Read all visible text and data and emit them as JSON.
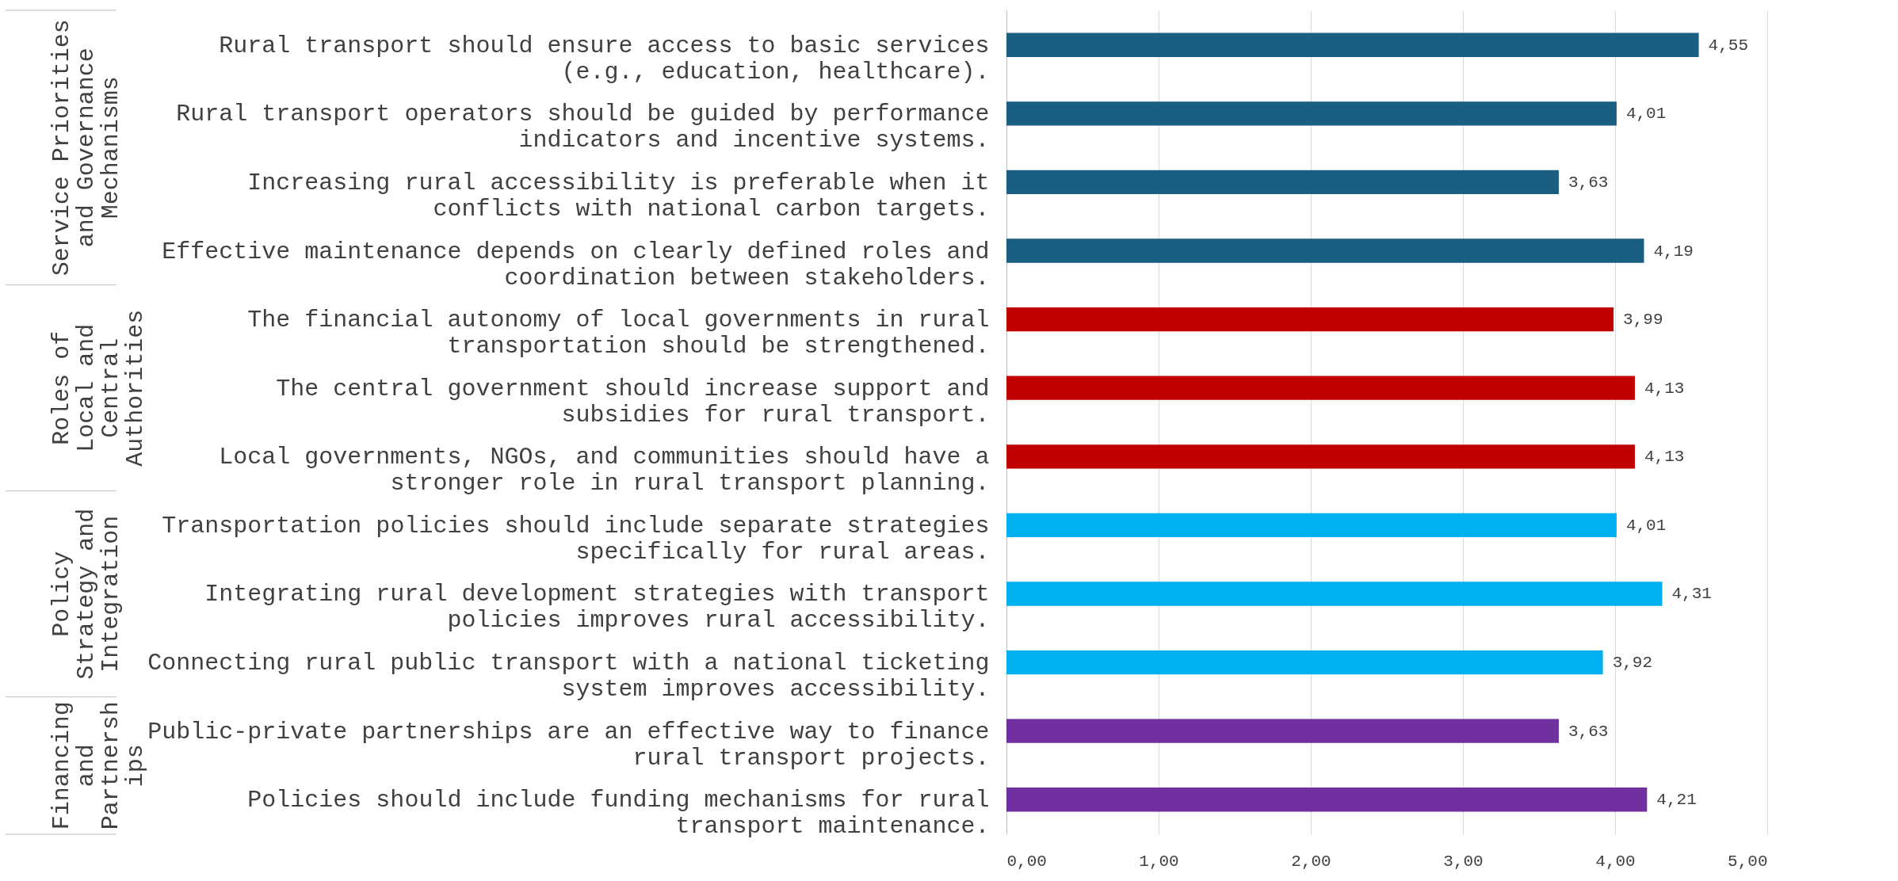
{
  "chart_data": {
    "type": "bar",
    "orientation": "horizontal",
    "categories": [
      "Rural transport should ensure access to basic services (e.g., education, healthcare).",
      "Rural transport operators should be guided by performance indicators and incentive systems.",
      "Increasing rural accessibility is preferable when it conflicts with national carbon targets.",
      "Effective maintenance depends on clearly defined roles and coordination between stakeholders.",
      "The financial autonomy of local governments in rural transportation should be strengthened.",
      "The central government should increase support and subsidies for rural transport.",
      "Local governments, NGOs, and communities should have a stronger role in rural transport planning.",
      "Transportation policies should include separate strategies specifically for rural areas.",
      "Integrating rural development strategies with transport policies improves rural accessibility.",
      "Connecting rural public transport with a national ticketing system improves accessibility.",
      "Public-private partnerships are an effective way to finance rural transport projects.",
      "Policies should include funding mechanisms for rural transport maintenance."
    ],
    "series": [
      {
        "color": "#1a5f82",
        "values": [
          4.55,
          4.01,
          3.63,
          4.19,
          null,
          null,
          null,
          null,
          null,
          null,
          null,
          null
        ],
        "value_labels": [
          "4,55",
          "4,01",
          "3,63",
          "4,19",
          null,
          null,
          null,
          null,
          null,
          null,
          null,
          null
        ]
      },
      {
        "color": "#c00000",
        "values": [
          null,
          null,
          null,
          null,
          3.99,
          4.13,
          4.13,
          null,
          null,
          null,
          null,
          null
        ],
        "value_labels": [
          null,
          null,
          null,
          null,
          "3,99",
          "4,13",
          "4,13",
          null,
          null,
          null,
          null,
          null
        ]
      },
      {
        "color": "#00b0f0",
        "values": [
          null,
          null,
          null,
          null,
          null,
          null,
          null,
          4.01,
          4.31,
          3.92,
          null,
          null
        ],
        "value_labels": [
          null,
          null,
          null,
          null,
          null,
          null,
          null,
          "4,01",
          "4,31",
          "3,92",
          null,
          null
        ]
      },
      {
        "color": "#7030a0",
        "values": [
          null,
          null,
          null,
          null,
          null,
          null,
          null,
          null,
          null,
          null,
          3.63,
          4.21
        ],
        "value_labels": [
          null,
          null,
          null,
          null,
          null,
          null,
          null,
          null,
          null,
          null,
          "3,63",
          "4,21"
        ]
      }
    ],
    "annotations": [
      "Service Priorities and Governance Mechanisms",
      "Roles of Local and Central Authorities",
      "Policy Strategy and Integration",
      "Financing and Partnerships"
    ],
    "xlim": [
      0,
      5
    ],
    "xticks": [
      {
        "value": 0,
        "label": "0,00"
      },
      {
        "value": 1,
        "label": "1,00"
      },
      {
        "value": 2,
        "label": "2,00"
      },
      {
        "value": 3,
        "label": "3,00"
      },
      {
        "value": 4,
        "label": "4,00"
      },
      {
        "value": 5,
        "label": "5,00"
      }
    ],
    "grid": "x",
    "legend": false
  }
}
